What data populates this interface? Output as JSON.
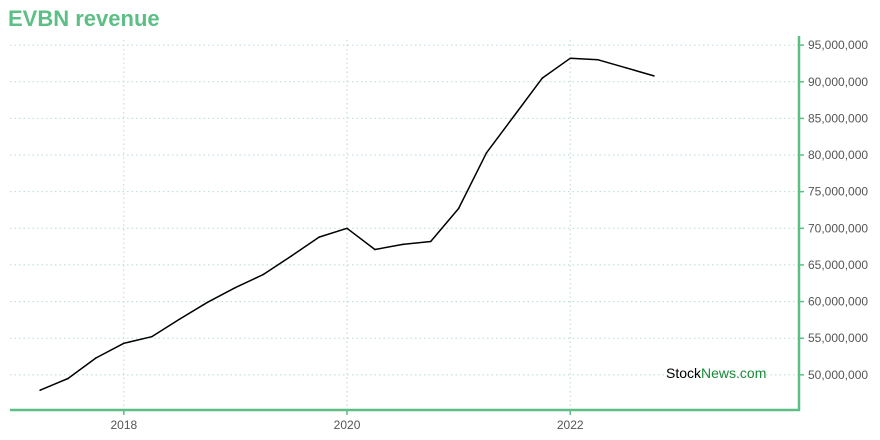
{
  "title": "EVBN revenue",
  "watermark": {
    "part1": "Stock",
    "part2": "News.com"
  },
  "colors": {
    "accent": "#5cbf86",
    "line": "#000000",
    "grid": "#b8dcc8",
    "text": "#555555",
    "watermark_dark": "#000000",
    "watermark_green": "#1a8a3a"
  },
  "chart_data": {
    "type": "line",
    "title": "EVBN revenue",
    "xlabel": "",
    "ylabel": "",
    "x_tick_labels": [
      "2018",
      "2020",
      "2022"
    ],
    "x_ticks": [
      2018,
      2020,
      2022
    ],
    "y_tick_labels": [
      "50,000,000",
      "55,000,000",
      "60,000,000",
      "65,000,000",
      "70,000,000",
      "75,000,000",
      "80,000,000",
      "85,000,000",
      "90,000,000",
      "95,000,000"
    ],
    "y_ticks": [
      50000000,
      55000000,
      60000000,
      65000000,
      70000000,
      75000000,
      80000000,
      85000000,
      90000000,
      95000000
    ],
    "xlim": [
      2016.98,
      2024.05
    ],
    "ylim": [
      45200000,
      95700000
    ],
    "grid": true,
    "y_axis_side": "right",
    "series": [
      {
        "x": [
          2017.25,
          2017.5,
          2017.75,
          2018.0,
          2018.25,
          2018.5,
          2018.75,
          2019.0,
          2019.25,
          2019.5,
          2019.75,
          2020.0,
          2020.25,
          2020.5,
          2020.75,
          2021.0,
          2021.25,
          2021.5,
          2021.75,
          2022.0,
          2022.25,
          2022.5,
          2022.75
        ],
        "values": [
          47900000,
          49500000,
          52300000,
          54300000,
          55200000,
          57600000,
          59900000,
          61900000,
          63700000,
          66200000,
          68800000,
          70000000,
          67100000,
          67800000,
          68200000,
          72700000,
          80300000,
          85400000,
          90500000,
          93200000,
          93000000,
          91900000,
          90800000
        ]
      }
    ]
  }
}
